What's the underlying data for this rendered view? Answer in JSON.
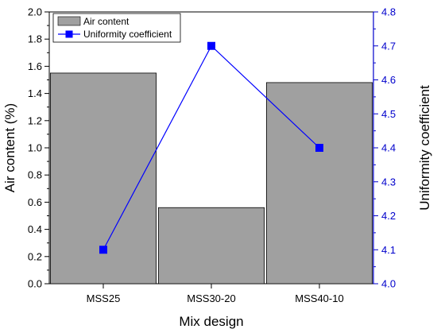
{
  "chart_data": {
    "type": "bar",
    "xlabel": "Mix design",
    "ylabel_left": "Air content (%)",
    "ylabel_right": "Uniformity coefficient",
    "categories": [
      "MSS25",
      "MSS30-20",
      "MSS40-10"
    ],
    "ylim_left": [
      0.0,
      2.0
    ],
    "ylim_right": [
      4.0,
      4.8
    ],
    "yticks_left": [
      "0.0",
      "0.2",
      "0.4",
      "0.6",
      "0.8",
      "1.0",
      "1.2",
      "1.4",
      "1.6",
      "1.8",
      "2.0"
    ],
    "yticks_right": [
      "4.0",
      "4.1",
      "4.2",
      "4.3",
      "4.4",
      "4.5",
      "4.6",
      "4.7",
      "4.8"
    ],
    "grid": false,
    "legend_position": "top-left",
    "series": [
      {
        "name": "Air content",
        "type": "bar",
        "axis": "left",
        "color": "#a0a0a0",
        "values": [
          1.55,
          0.56,
          1.48
        ]
      },
      {
        "name": "Uniformity coefficient",
        "type": "line",
        "axis": "right",
        "color": "#0000ff",
        "values": [
          4.1,
          4.7,
          4.4
        ]
      }
    ]
  }
}
